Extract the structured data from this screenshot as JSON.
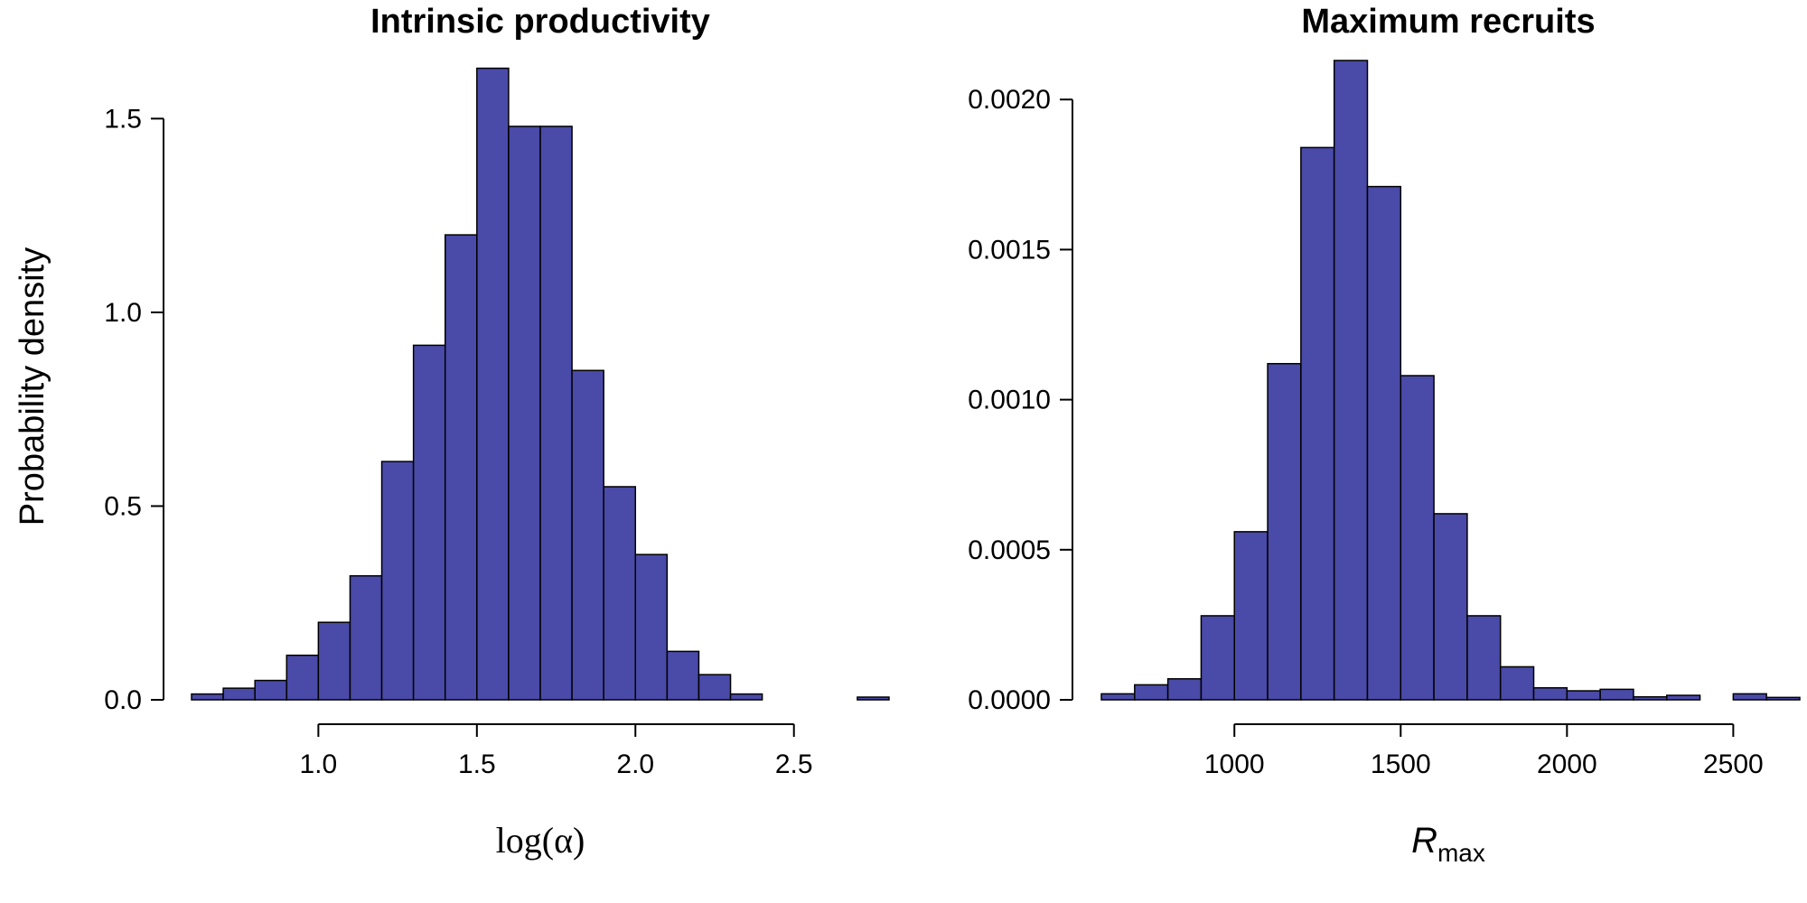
{
  "colors": {
    "bar_fill": "#4a4aa8",
    "bar_stroke": "#000000"
  },
  "chart_data": [
    {
      "type": "bar",
      "title": "Intrinsic productivity",
      "ylabel": "Probability density",
      "xlabel": "log(α)",
      "xlim": [
        0.6,
        2.8
      ],
      "ylim": [
        0,
        1.65
      ],
      "xticks": [
        1.0,
        1.5,
        2.0,
        2.5
      ],
      "xtick_labels": [
        "1.0",
        "1.5",
        "2.0",
        "2.5"
      ],
      "yticks": [
        0.0,
        0.5,
        1.0,
        1.5
      ],
      "ytick_labels": [
        "0.0",
        "0.5",
        "1.0",
        "1.5"
      ],
      "bin_width": 0.1,
      "bins": [
        [
          0.6,
          0.7,
          0.015
        ],
        [
          0.7,
          0.8,
          0.03
        ],
        [
          0.8,
          0.9,
          0.05
        ],
        [
          0.9,
          1.0,
          0.115
        ],
        [
          1.0,
          1.1,
          0.2
        ],
        [
          1.1,
          1.2,
          0.32
        ],
        [
          1.2,
          1.3,
          0.615
        ],
        [
          1.3,
          1.4,
          0.915
        ],
        [
          1.4,
          1.5,
          1.2
        ],
        [
          1.5,
          1.6,
          1.63
        ],
        [
          1.6,
          1.7,
          1.48
        ],
        [
          1.7,
          1.8,
          1.48
        ],
        [
          1.8,
          1.9,
          0.85
        ],
        [
          1.9,
          2.0,
          0.55
        ],
        [
          2.0,
          2.1,
          0.375
        ],
        [
          2.1,
          2.2,
          0.125
        ],
        [
          2.2,
          2.3,
          0.065
        ],
        [
          2.3,
          2.4,
          0.015
        ],
        [
          2.4,
          2.5,
          0.0
        ],
        [
          2.5,
          2.6,
          0.0
        ],
        [
          2.6,
          2.7,
          0.0
        ],
        [
          2.7,
          2.8,
          0.007
        ]
      ]
    },
    {
      "type": "bar",
      "title": "Maximum recruits",
      "ylabel": "",
      "xlabel_main": "R",
      "xlabel_sub": "max",
      "xlim": [
        600,
        2700
      ],
      "ylim": [
        0,
        0.00213
      ],
      "xticks": [
        1000,
        1500,
        2000,
        2500
      ],
      "xtick_labels": [
        "1000",
        "1500",
        "2000",
        "2500"
      ],
      "yticks": [
        0.0,
        0.0005,
        0.001,
        0.0015,
        0.002
      ],
      "ytick_labels": [
        "0.0000",
        "0.0005",
        "0.0010",
        "0.0015",
        "0.0020"
      ],
      "bin_width": 100,
      "bins": [
        [
          600,
          700,
          2e-05
        ],
        [
          700,
          800,
          5e-05
        ],
        [
          800,
          900,
          7e-05
        ],
        [
          900,
          1000,
          0.00028
        ],
        [
          1000,
          1100,
          0.00056
        ],
        [
          1100,
          1200,
          0.00112
        ],
        [
          1200,
          1300,
          0.00184
        ],
        [
          1300,
          1400,
          0.00213
        ],
        [
          1400,
          1500,
          0.00171
        ],
        [
          1500,
          1600,
          0.00108
        ],
        [
          1600,
          1700,
          0.00062
        ],
        [
          1700,
          1800,
          0.00028
        ],
        [
          1800,
          1900,
          0.00011
        ],
        [
          1900,
          2000,
          4e-05
        ],
        [
          2000,
          2100,
          3e-05
        ],
        [
          2100,
          2200,
          3.5e-05
        ],
        [
          2200,
          2300,
          1e-05
        ],
        [
          2300,
          2400,
          1.5e-05
        ],
        [
          2400,
          2500,
          0.0
        ],
        [
          2500,
          2600,
          2e-05
        ],
        [
          2600,
          2700,
          8e-06
        ]
      ]
    }
  ]
}
